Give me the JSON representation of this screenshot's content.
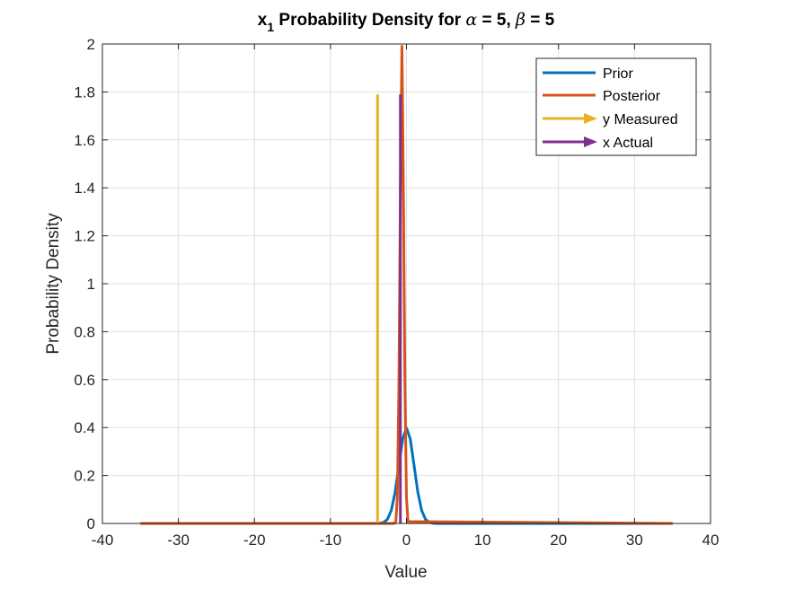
{
  "chart_data": {
    "type": "line",
    "title": {
      "main": "x",
      "subscript": "1",
      "text1": " Probability Density for ",
      "alpha_symbol": "α",
      "text2": " = 5, ",
      "beta_symbol": "β",
      "text3": " = 5"
    },
    "xlabel": "Value",
    "ylabel": "Probability Density",
    "xlim": [
      -40,
      40
    ],
    "ylim": [
      0,
      2
    ],
    "xticks": [
      -40,
      -30,
      -20,
      -10,
      0,
      10,
      20,
      30,
      40
    ],
    "yticks": [
      0,
      0.2,
      0.4,
      0.6,
      0.8,
      1,
      1.2,
      1.4,
      1.6,
      1.8,
      2
    ],
    "xtick_labels": [
      "-40",
      "-30",
      "-20",
      "-10",
      "0",
      "10",
      "20",
      "30",
      "40"
    ],
    "ytick_labels": [
      "0",
      "0.2",
      "0.4",
      "0.6",
      "0.8",
      "1",
      "1.2",
      "1.4",
      "1.6",
      "1.8",
      "2"
    ],
    "grid": true,
    "legend_position": "top-right",
    "series": [
      {
        "name": "Prior",
        "kind": "line",
        "color": "#0072BD",
        "x": [
          -35,
          -4,
          -3.5,
          -3,
          -2.5,
          -2,
          -1.5,
          -1,
          -0.5,
          0,
          0.5,
          1,
          1.5,
          2,
          2.5,
          3,
          3.5,
          4,
          35
        ],
        "y": [
          0,
          0.0001,
          0.001,
          0.0044,
          0.0175,
          0.054,
          0.1295,
          0.242,
          0.3521,
          0.3989,
          0.3521,
          0.242,
          0.1295,
          0.054,
          0.0175,
          0.0044,
          0.001,
          0.0001,
          0
        ]
      },
      {
        "name": "Posterior",
        "kind": "line",
        "color": "#D95319",
        "x": [
          -35,
          -1.6,
          -1.4,
          -1.2,
          -1.0,
          -0.9,
          -0.8,
          -0.7,
          -0.6,
          -0.5,
          -0.4,
          -0.3,
          -0.2,
          0.0,
          0.2,
          35
        ],
        "y": [
          0,
          0.0,
          0.008,
          0.108,
          0.571,
          0.952,
          1.37,
          1.7,
          1.99,
          1.7,
          1.37,
          0.952,
          0.571,
          0.108,
          0.008,
          0
        ]
      },
      {
        "name": "y Measured",
        "kind": "arrow",
        "color": "#EDB120",
        "x": -3.8,
        "y_start": 0,
        "y_end": 1.79
      },
      {
        "name": "x Actual",
        "kind": "arrow",
        "color": "#7E2F8E",
        "x": -0.8,
        "y_start": 0,
        "y_end": 1.79
      }
    ]
  }
}
